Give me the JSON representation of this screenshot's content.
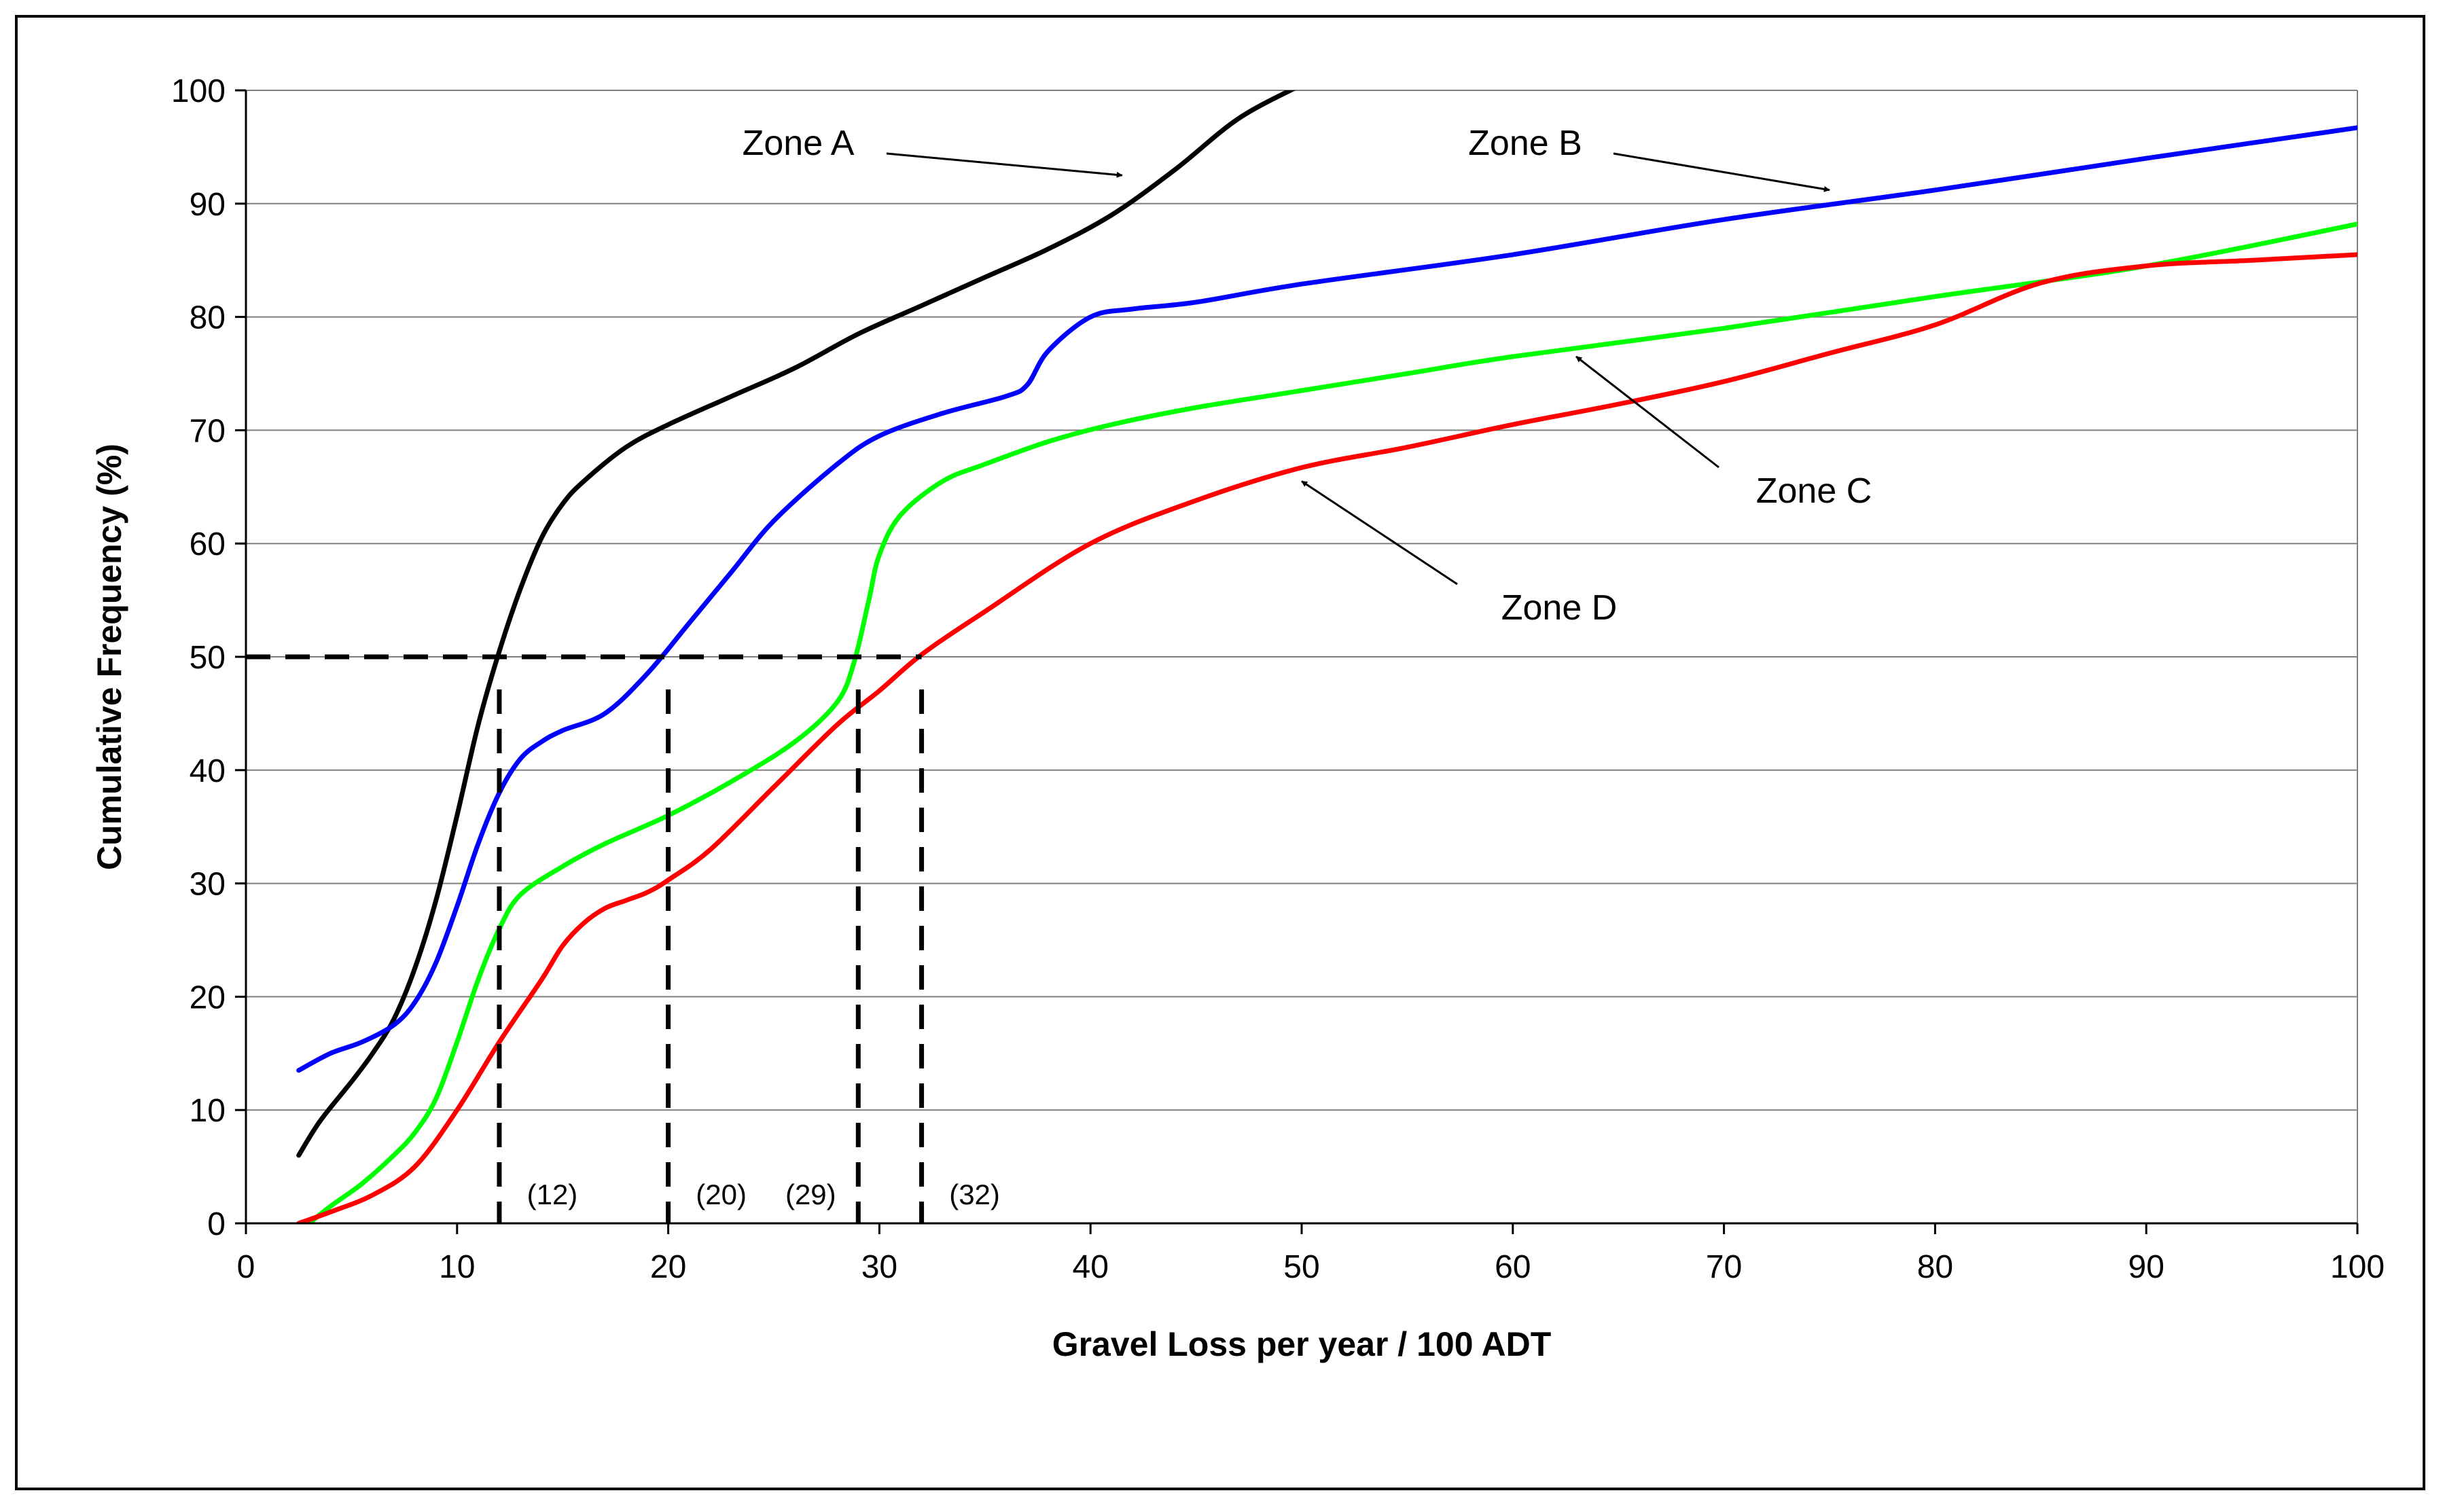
{
  "chart_data": {
    "type": "line",
    "title": "",
    "xlabel": "Gravel Loss per year / 100 ADT",
    "ylabel": "Cumulative Frequency (%)",
    "xlim": [
      0,
      100
    ],
    "ylim": [
      0,
      100
    ],
    "xticks": [
      0,
      10,
      20,
      30,
      40,
      50,
      60,
      70,
      80,
      90,
      100
    ],
    "yticks": [
      0,
      10,
      20,
      30,
      40,
      50,
      60,
      70,
      80,
      90,
      100
    ],
    "grid": "horizontal",
    "series": [
      {
        "name": "Zone A",
        "color": "#000000",
        "x": [
          2.5,
          3.5,
          5,
          6,
          7,
          8,
          9,
          10,
          11,
          12,
          13,
          14,
          15,
          16,
          18,
          20,
          23,
          26,
          29,
          32,
          35,
          38,
          41,
          44,
          47,
          50
        ],
        "y": [
          6,
          9,
          12.5,
          15,
          18,
          22.5,
          28.5,
          36,
          44,
          50.5,
          56,
          60.5,
          63.5,
          65.5,
          68.5,
          70.5,
          73,
          75.5,
          78.5,
          81,
          83.5,
          86,
          89,
          93,
          97.5,
          100.5
        ]
      },
      {
        "name": "Zone B",
        "color": "#0000ff",
        "x": [
          2.5,
          4,
          5.5,
          7,
          8,
          9,
          10,
          11,
          12,
          13,
          14,
          15,
          17,
          19,
          21,
          23,
          25,
          28,
          30,
          33,
          36,
          37,
          38,
          40,
          42,
          45,
          50,
          60,
          70,
          80,
          90,
          100
        ],
        "y": [
          13.5,
          15,
          16,
          17.5,
          19.5,
          23,
          28,
          33.5,
          38,
          41,
          42.5,
          43.5,
          45,
          48.5,
          53,
          57.5,
          62,
          67,
          69.5,
          71.5,
          73,
          74,
          77,
          80,
          80.7,
          81.3,
          82.9,
          85.5,
          88.6,
          91.2,
          94,
          96.7
        ]
      },
      {
        "name": "Zone C",
        "color": "#00ff00",
        "x": [
          3,
          4,
          5.5,
          7,
          8,
          9,
          10,
          11,
          12,
          13,
          15,
          17,
          20,
          23,
          26,
          28,
          28.8,
          29.5,
          30,
          31,
          33,
          35,
          38,
          41,
          45,
          50,
          55,
          60,
          70,
          80,
          90,
          100
        ],
        "y": [
          0,
          1.5,
          3.5,
          6,
          8,
          11,
          16,
          21.5,
          26,
          29,
          31.5,
          33.5,
          36,
          39,
          42.5,
          46,
          49.5,
          55,
          59,
          62.5,
          65.5,
          67,
          69,
          70.5,
          72,
          73.5,
          75,
          76.5,
          79,
          81.8,
          84.5,
          88.2
        ]
      },
      {
        "name": "Zone D",
        "color": "#ff0000",
        "x": [
          2.5,
          4,
          6,
          8,
          10,
          12,
          14,
          15,
          16,
          17,
          18,
          19,
          20,
          22,
          25,
          28,
          30,
          32,
          35,
          40,
          45,
          50,
          55,
          60,
          65,
          70,
          75,
          80,
          85,
          90,
          95,
          100
        ],
        "y": [
          0,
          1,
          2.5,
          5,
          10,
          16,
          21.5,
          24.5,
          26.5,
          27.8,
          28.5,
          29.2,
          30.3,
          33,
          38.5,
          44,
          47,
          50.2,
          54,
          60,
          63.8,
          66.7,
          68.5,
          70.5,
          72.3,
          74.3,
          76.8,
          79.3,
          83,
          84.5,
          85,
          85.5
        ]
      }
    ],
    "reference_line": {
      "y": 50,
      "x_from": 0,
      "x_to": 32
    },
    "markers": [
      {
        "x": 12,
        "label": "(12)"
      },
      {
        "x": 20,
        "label": "(20)"
      },
      {
        "x": 29,
        "label": "(29)"
      },
      {
        "x": 32,
        "label": "(32)"
      }
    ],
    "annotations": [
      {
        "label": "Zone A",
        "arrow_to": [
          41.5,
          92.5
        ]
      },
      {
        "label": "Zone B",
        "arrow_to": [
          75,
          91.2
        ]
      },
      {
        "label": "Zone C",
        "arrow_to": [
          63,
          76.5
        ]
      },
      {
        "label": "Zone D",
        "arrow_to": [
          50,
          65.5
        ]
      }
    ]
  }
}
